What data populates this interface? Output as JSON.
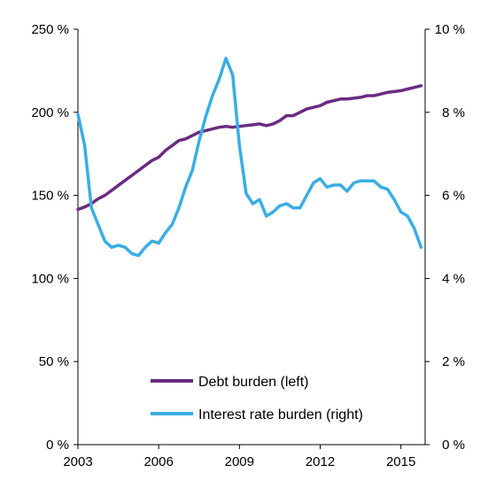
{
  "chart_data": {
    "type": "line",
    "title": "",
    "xlabel": "",
    "ylabel_left": "",
    "ylabel_right": "",
    "x_ticks": [
      2003,
      2006,
      2009,
      2012,
      2015
    ],
    "x_range": [
      2003,
      2015.9
    ],
    "y_left": {
      "range": [
        0,
        250
      ],
      "ticks": [
        "0 %",
        "50 %",
        "100 %",
        "150 %",
        "200 %",
        "250 %"
      ],
      "tick_values": [
        0,
        50,
        100,
        150,
        200,
        250
      ]
    },
    "y_right": {
      "range": [
        0,
        10
      ],
      "ticks": [
        "0 %",
        "2 %",
        "4 %",
        "6 %",
        "8 %",
        "10 %"
      ],
      "tick_values": [
        0,
        2,
        4,
        6,
        8,
        10
      ]
    },
    "grid": false,
    "legend_position": "bottom-center",
    "series": [
      {
        "name": "Debt burden (left)",
        "axis": "left",
        "color": "#6a2b82",
        "x": [
          2003.0,
          2003.25,
          2003.5,
          2003.75,
          2004.0,
          2004.25,
          2004.5,
          2004.75,
          2005.0,
          2005.25,
          2005.5,
          2005.75,
          2006.0,
          2006.25,
          2006.5,
          2006.75,
          2007.0,
          2007.25,
          2007.5,
          2007.75,
          2008.0,
          2008.25,
          2008.5,
          2008.75,
          2009.0,
          2009.25,
          2009.5,
          2009.75,
          2010.0,
          2010.25,
          2010.5,
          2010.75,
          2011.0,
          2011.25,
          2011.5,
          2011.75,
          2012.0,
          2012.25,
          2012.5,
          2012.75,
          2013.0,
          2013.25,
          2013.5,
          2013.75,
          2014.0,
          2014.25,
          2014.5,
          2014.75,
          2015.0,
          2015.25,
          2015.5,
          2015.75
        ],
        "values": [
          141.5,
          143,
          145,
          148,
          150,
          153,
          156,
          159,
          162,
          165,
          168,
          171,
          173,
          177,
          180,
          183,
          184,
          186,
          188,
          189,
          190,
          191,
          191.5,
          191,
          191.5,
          192,
          192.5,
          193,
          192,
          193,
          195,
          198,
          198,
          200,
          202,
          203,
          204,
          206,
          207,
          208,
          208,
          208.5,
          209,
          210,
          210,
          211,
          212,
          212.5,
          213,
          214,
          215,
          216
        ]
      },
      {
        "name": "Interest rate burden (right)",
        "axis": "right",
        "color": "#3aaee3",
        "x": [
          2003.0,
          2003.25,
          2003.5,
          2003.75,
          2004.0,
          2004.25,
          2004.5,
          2004.75,
          2005.0,
          2005.25,
          2005.5,
          2005.75,
          2006.0,
          2006.25,
          2006.5,
          2006.75,
          2007.0,
          2007.25,
          2007.5,
          2007.75,
          2008.0,
          2008.25,
          2008.5,
          2008.75,
          2009.0,
          2009.25,
          2009.5,
          2009.75,
          2010.0,
          2010.25,
          2010.5,
          2010.75,
          2011.0,
          2011.25,
          2011.5,
          2011.75,
          2012.0,
          2012.25,
          2012.5,
          2012.75,
          2013.0,
          2013.25,
          2013.5,
          2013.75,
          2014.0,
          2014.25,
          2014.5,
          2014.75,
          2015.0,
          2015.25,
          2015.5,
          2015.75
        ],
        "values": [
          7.95,
          7.2,
          5.7,
          5.3,
          4.9,
          4.75,
          4.8,
          4.75,
          4.6,
          4.55,
          4.75,
          4.9,
          4.85,
          5.1,
          5.3,
          5.7,
          6.2,
          6.6,
          7.3,
          7.9,
          8.4,
          8.8,
          9.3,
          8.9,
          7.2,
          6.05,
          5.8,
          5.9,
          5.5,
          5.6,
          5.75,
          5.8,
          5.7,
          5.7,
          6.0,
          6.3,
          6.4,
          6.2,
          6.25,
          6.25,
          6.1,
          6.3,
          6.35,
          6.35,
          6.35,
          6.2,
          6.15,
          5.9,
          5.6,
          5.5,
          5.2,
          4.75
        ]
      }
    ]
  }
}
